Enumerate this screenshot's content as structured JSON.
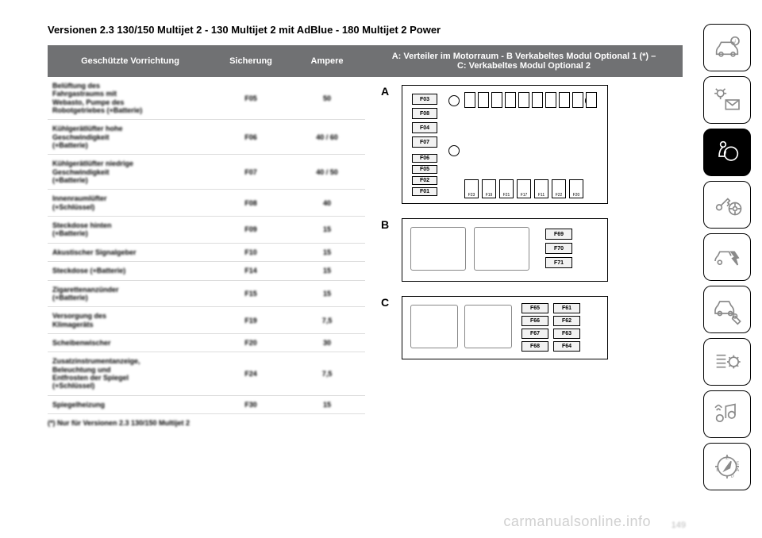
{
  "heading": "Versionen 2.3 130/150 Multijet 2 - 130 Multijet 2 mit AdBlue - 180 Multijet 2 Power",
  "columns": {
    "c1": "Geschützte Vorrichtung",
    "c2": "Sicherung",
    "c3": "Ampere",
    "c4": "A: Verteiler im Motorraum - B Verkabeltes Modul Optional 1 (*) –\nC: Verkabeltes Modul Optional 2"
  },
  "rows": [
    {
      "desc": "Belüftung des\nFahrgastraums mit\nWebasto, Pumpe des\nRobotgetriebes (+Batterie)",
      "fuse": "F05",
      "amp": "50"
    },
    {
      "desc": "Kühlgerätlüfter hohe\nGeschwindigkeit\n(+Batterie)",
      "fuse": "F06",
      "amp": "40 / 60"
    },
    {
      "desc": "Kühlgerätlüfter niedrige\nGeschwindigkeit\n(+Batterie)",
      "fuse": "F07",
      "amp": "40 / 50"
    },
    {
      "desc": "Innenraumlüfter\n(+Schlüssel)",
      "fuse": "F08",
      "amp": "40"
    },
    {
      "desc": "Steckdose hinten\n(+Batterie)",
      "fuse": "F09",
      "amp": "15"
    },
    {
      "desc": "Akustischer Signalgeber",
      "fuse": "F10",
      "amp": "15"
    },
    {
      "desc": "Steckdose (+Batterie)",
      "fuse": "F14",
      "amp": "15"
    },
    {
      "desc": "Zigarettenanzünder\n(+Batterie)",
      "fuse": "F15",
      "amp": "15"
    },
    {
      "desc": "Versorgung des\nKlimageräts",
      "fuse": "F19",
      "amp": "7,5"
    },
    {
      "desc": "Scheibenwischer",
      "fuse": "F20",
      "amp": "30"
    },
    {
      "desc": "Zusatzinstrumentanzeige,\nBeleuchtung und\nEntfrosten der Spiegel\n(+Schlüssel)",
      "fuse": "F24",
      "amp": "7,5"
    },
    {
      "desc": "Spiegelheizung",
      "fuse": "F30",
      "amp": "15"
    }
  ],
  "footnote": "(*) Nur für Versionen 2.3 130/150 Multijet 2",
  "diagram": {
    "A": {
      "label": "A",
      "left_col": [
        "F03",
        "F08",
        "F04",
        "F07"
      ],
      "mid_col": [
        "F06",
        "F05",
        "F02",
        "F01"
      ],
      "bottom": [
        "F23",
        "F19",
        "F21",
        "F17",
        "F11",
        "F22",
        "F20"
      ]
    },
    "B": {
      "label": "B",
      "fuses": [
        "F69",
        "F70",
        "F71"
      ]
    },
    "C": {
      "label": "C",
      "grid": [
        [
          "F65",
          "F61"
        ],
        [
          "F66",
          "F62"
        ],
        [
          "F67",
          "F63"
        ],
        [
          "F68",
          "F64"
        ]
      ]
    }
  },
  "watermark": "carmanualsonline.info",
  "pagenum": "149",
  "colors": {
    "header_bg": "#707173",
    "header_fg": "#ffffff",
    "row_border": "#dddddd",
    "icon_gray": "#8a8a8a"
  }
}
